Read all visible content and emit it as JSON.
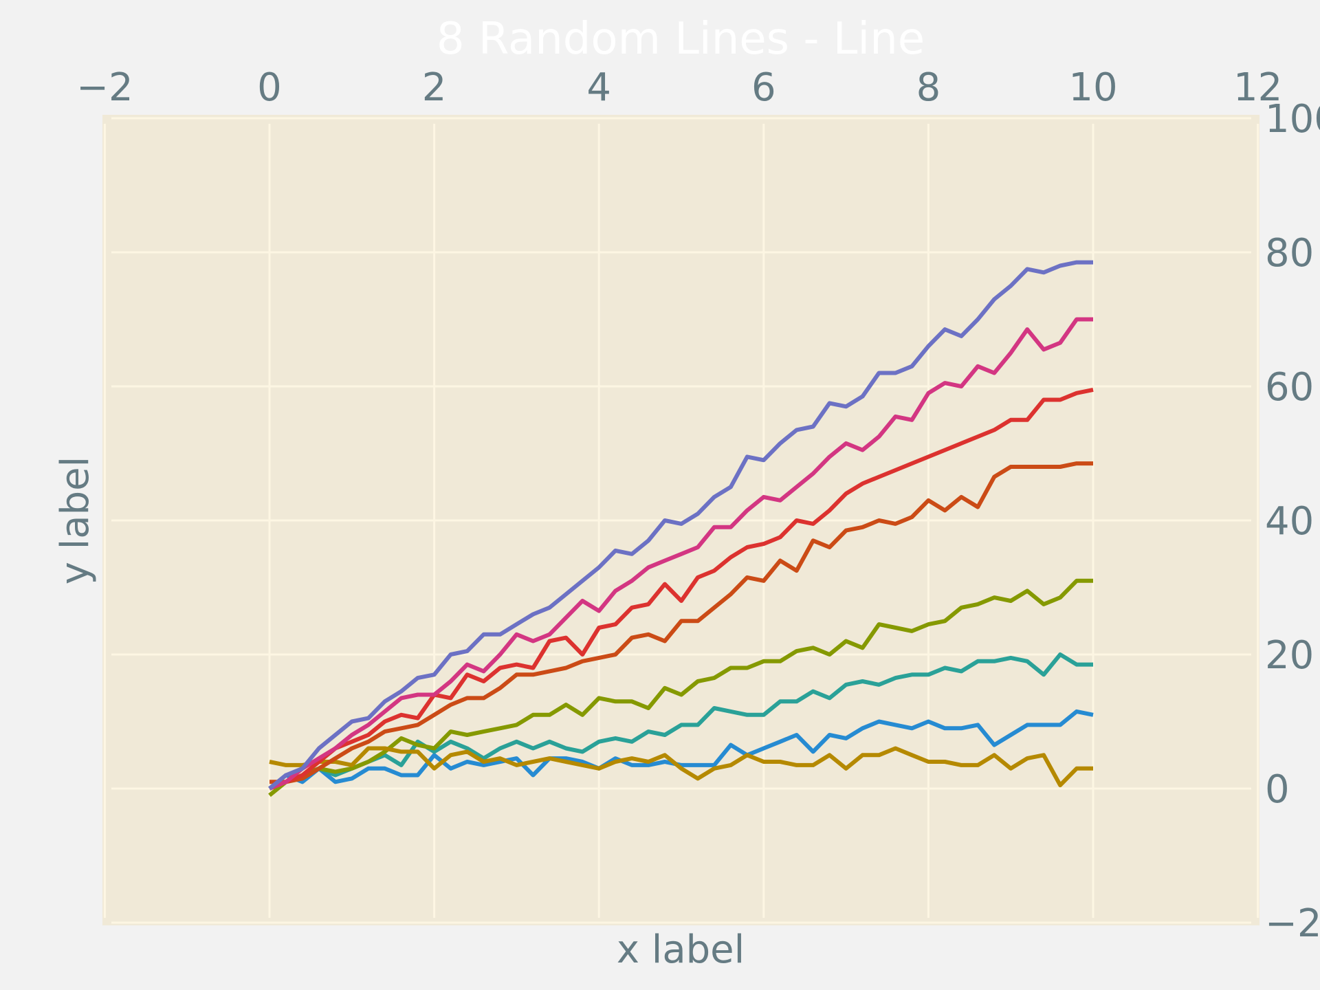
{
  "chart_data": {
    "type": "line",
    "title": "8 Random Lines - Line",
    "xlabel": "x label",
    "ylabel": "y label",
    "xlim": [
      -2,
      12
    ],
    "ylim": [
      -20,
      100
    ],
    "xticks": [
      -2,
      0,
      2,
      4,
      6,
      8,
      10,
      12
    ],
    "yticks": [
      -20,
      0,
      20,
      40,
      60,
      80,
      100
    ],
    "xtick_labels": [
      "−2",
      "0",
      "2",
      "4",
      "6",
      "8",
      "10",
      "12"
    ],
    "ytick_labels": [
      "−20",
      "0",
      "20",
      "40",
      "60",
      "80",
      "100"
    ],
    "x_axis_position": "top",
    "y_axis_position": "right",
    "grid": true,
    "colors": {
      "figure_bg": "#f2f2f2",
      "plot_bg": "#f0e9d7",
      "grid": "#fdf6e3",
      "text": "#657b83"
    },
    "x": [
      0,
      0.2,
      0.4,
      0.6,
      0.8,
      1.0,
      1.2,
      1.4,
      1.6,
      1.8,
      2.0,
      2.2,
      2.4,
      2.6,
      2.8,
      3.0,
      3.2,
      3.4,
      3.6,
      3.8,
      4.0,
      4.2,
      4.4,
      4.6,
      4.8,
      5.0,
      5.2,
      5.4,
      5.6,
      5.8,
      6.0,
      6.2,
      6.4,
      6.6,
      6.8,
      7.0,
      7.2,
      7.4,
      7.6,
      7.8,
      8.0,
      8.2,
      8.4,
      8.6,
      8.8,
      9.0,
      9.2,
      9.4,
      9.6,
      9.8,
      10.0
    ],
    "series": [
      {
        "color": "#268bd2",
        "values": [
          0,
          2,
          1,
          3,
          1,
          1.5,
          3,
          3,
          2,
          2,
          5,
          3,
          4,
          3.5,
          4,
          4.5,
          2,
          4.5,
          4.5,
          4,
          3,
          4.5,
          3.5,
          3.5,
          4,
          3.5,
          3.5,
          3.5,
          6.5,
          5,
          6,
          7,
          8,
          5.5,
          8,
          7.5,
          9,
          10,
          9.5,
          9,
          10,
          9,
          9,
          9.5,
          6.5,
          8,
          9.5,
          9.5,
          9.5,
          11.5,
          11
        ]
      },
      {
        "color": "#2aa198",
        "values": [
          0,
          1,
          2,
          3,
          2,
          3,
          4,
          5,
          3.5,
          7,
          5.5,
          7,
          6,
          4.5,
          6,
          7,
          6,
          7,
          6,
          5.5,
          7,
          7.5,
          7,
          8.5,
          8,
          9.5,
          9.5,
          12,
          11.5,
          11,
          11,
          13,
          13,
          14.5,
          13.5,
          15.5,
          16,
          15.5,
          16.5,
          17,
          17,
          18,
          17.5,
          19,
          19,
          19.5,
          19,
          17,
          20,
          18.5,
          18.5
        ]
      },
      {
        "color": "#859900",
        "values": [
          -1,
          1,
          2,
          3,
          2.5,
          3,
          4,
          5.5,
          7.5,
          6.5,
          6,
          8.5,
          8,
          8.5,
          9,
          9.5,
          11,
          11,
          12.5,
          11,
          13.5,
          13,
          13,
          12,
          15,
          14,
          16,
          16.5,
          18,
          18,
          19,
          19,
          20.5,
          21,
          20,
          22,
          21,
          24.5,
          24,
          23.5,
          24.5,
          25,
          27,
          27.5,
          28.5,
          28,
          29.5,
          27.5,
          28.5,
          31,
          31
        ]
      },
      {
        "color": "#b58900",
        "values": [
          4,
          3.5,
          3.5,
          4,
          4,
          3.5,
          6,
          6,
          5.5,
          5.5,
          3,
          5,
          5.5,
          4,
          4.5,
          3.5,
          4,
          4.5,
          4,
          3.5,
          3,
          4,
          4.5,
          4,
          5,
          3,
          1.5,
          3,
          3.5,
          5,
          4,
          4,
          3.5,
          3.5,
          5,
          3,
          5,
          5,
          6,
          5,
          4,
          4,
          3.5,
          3.5,
          5,
          3,
          4.5,
          5,
          0.5,
          3,
          3
        ]
      },
      {
        "color": "#cb4b16",
        "values": [
          1,
          1,
          1.5,
          3,
          4.5,
          6,
          7,
          8.5,
          9,
          9.5,
          11,
          12.5,
          13.5,
          13.5,
          15,
          17,
          17,
          17.5,
          18,
          19,
          19.5,
          20,
          22.5,
          23,
          22,
          25,
          25,
          27,
          29,
          31.5,
          31,
          34,
          32.5,
          37,
          36,
          38.5,
          39,
          40,
          39.5,
          40.5,
          43,
          41.5,
          43.5,
          42,
          46.5,
          48,
          48,
          48,
          48,
          48.5,
          48.5
        ]
      },
      {
        "color": "#dc322f",
        "values": [
          0,
          1,
          2,
          4,
          6,
          7,
          8,
          10,
          11,
          10.5,
          14,
          13.5,
          17,
          16,
          18,
          18.5,
          18,
          22,
          22.5,
          20,
          24,
          24.5,
          27,
          27.5,
          30.5,
          28,
          31.5,
          32.5,
          34.5,
          36,
          36.5,
          37.5,
          40,
          39.5,
          41.5,
          44,
          45.5,
          46.5,
          47.5,
          48.5,
          49.5,
          50.5,
          51.5,
          52.5,
          53.5,
          55,
          55,
          58,
          58,
          59,
          59.5
        ]
      },
      {
        "color": "#d33682",
        "values": [
          0,
          1,
          3,
          4.5,
          6,
          8,
          9.5,
          11.5,
          13.5,
          14,
          14,
          16,
          18.5,
          17.5,
          20,
          23,
          22,
          23,
          25.5,
          28,
          26.5,
          29.5,
          31,
          33,
          34,
          35,
          36,
          39,
          39,
          41.5,
          43.5,
          43,
          45,
          47,
          49.5,
          51.5,
          50.5,
          52.5,
          55.5,
          55,
          59,
          60.5,
          60,
          63,
          62,
          65,
          68.5,
          65.5,
          66.5,
          70,
          70
        ]
      },
      {
        "color": "#6c71c4",
        "values": [
          0,
          2,
          3,
          6,
          8,
          10,
          10.5,
          13,
          14.5,
          16.5,
          17,
          20,
          20.5,
          23,
          23,
          24.5,
          26,
          27,
          29,
          31,
          33,
          35.5,
          35,
          37,
          40,
          39.5,
          41,
          43.5,
          45,
          49.5,
          49,
          51.5,
          53.5,
          54,
          57.5,
          57,
          58.5,
          62,
          62,
          63,
          66,
          68.5,
          67.5,
          70,
          73,
          75,
          77.5,
          77,
          78,
          78.5,
          78.5
        ]
      }
    ]
  }
}
